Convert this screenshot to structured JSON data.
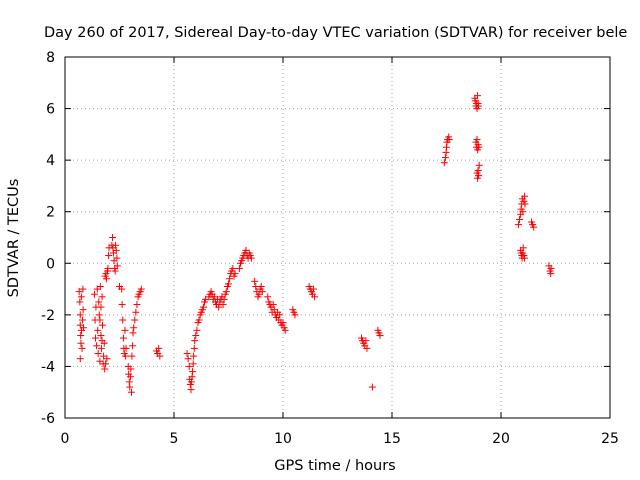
{
  "chart_data": {
    "type": "scatter",
    "title": "Day 260 of 2017, Sidereal Day-to-day VTEC variation (SDTVAR) for receiver bele",
    "xlabel": "GPS time / hours",
    "ylabel": "SDTVAR / TECUs",
    "xlim": [
      0,
      25
    ],
    "ylim": [
      -6,
      8
    ],
    "xticks": [
      0,
      5,
      10,
      15,
      20,
      25
    ],
    "yticks": [
      -6,
      -4,
      -2,
      0,
      2,
      4,
      6,
      8
    ],
    "grid": true,
    "marker": "+",
    "marker_color": "#ff0000",
    "series": [
      {
        "name": "SDTVAR",
        "points": [
          [
            0.65,
            -1.1
          ],
          [
            0.68,
            -1.5
          ],
          [
            0.7,
            -2.0
          ],
          [
            0.7,
            -2.4
          ],
          [
            0.72,
            -2.8
          ],
          [
            0.73,
            -3.1
          ],
          [
            0.75,
            -1.3
          ],
          [
            0.76,
            -2.6
          ],
          [
            0.78,
            -3.3
          ],
          [
            0.8,
            -2.2
          ],
          [
            0.7,
            -3.7
          ],
          [
            0.82,
            -1.0
          ],
          [
            0.83,
            -1.8
          ],
          [
            0.85,
            -2.5
          ],
          [
            1.35,
            -1.2
          ],
          [
            1.38,
            -2.2
          ],
          [
            1.4,
            -2.9
          ],
          [
            1.42,
            -1.7
          ],
          [
            1.45,
            -3.2
          ],
          [
            1.48,
            -1.0
          ],
          [
            1.5,
            -2.6
          ],
          [
            1.52,
            -3.5
          ],
          [
            1.55,
            -1.5
          ],
          [
            1.57,
            -2.0
          ],
          [
            1.6,
            -3.8
          ],
          [
            1.62,
            -0.9
          ],
          [
            1.65,
            -2.8
          ],
          [
            1.67,
            -3.3
          ],
          [
            1.7,
            -1.3
          ],
          [
            1.72,
            -2.4
          ],
          [
            1.75,
            -3.9
          ],
          [
            1.77,
            -3.6
          ],
          [
            1.8,
            -3.1
          ],
          [
            1.82,
            -4.1
          ],
          [
            1.84,
            -0.5
          ],
          [
            1.86,
            -3.9
          ],
          [
            1.88,
            -0.4
          ],
          [
            1.9,
            -0.6
          ],
          [
            1.92,
            -3.7
          ],
          [
            1.95,
            -0.3
          ],
          [
            1.97,
            -0.2
          ],
          [
            2.0,
            0.3
          ],
          [
            2.02,
            0.6
          ],
          [
            1.6,
            -2.2
          ],
          [
            1.65,
            -1.7
          ],
          [
            1.7,
            -3.0
          ],
          [
            2.15,
            0.7
          ],
          [
            2.18,
            1.0
          ],
          [
            2.2,
            0.6
          ],
          [
            2.22,
            0.4
          ],
          [
            2.25,
            0.1
          ],
          [
            2.28,
            -0.2
          ],
          [
            2.3,
            -0.3
          ],
          [
            2.32,
            0.7
          ],
          [
            2.35,
            0.5
          ],
          [
            2.38,
            0.2
          ],
          [
            2.4,
            -0.1
          ],
          [
            2.5,
            -0.9
          ],
          [
            2.6,
            -1.0
          ],
          [
            2.62,
            -1.6
          ],
          [
            2.65,
            -2.2
          ],
          [
            2.68,
            -2.9
          ],
          [
            2.7,
            -3.3
          ],
          [
            2.72,
            -3.5
          ],
          [
            2.75,
            -2.6
          ],
          [
            2.78,
            -3.6
          ],
          [
            2.8,
            -3.3
          ],
          [
            2.9,
            -4.0
          ],
          [
            2.92,
            -4.3
          ],
          [
            2.95,
            -4.6
          ],
          [
            2.97,
            -4.8
          ],
          [
            3.0,
            -4.4
          ],
          [
            3.02,
            -4.1
          ],
          [
            3.05,
            -5.0
          ],
          [
            3.07,
            -3.6
          ],
          [
            3.1,
            -3.2
          ],
          [
            3.12,
            -2.7
          ],
          [
            3.15,
            -2.5
          ],
          [
            3.2,
            -2.2
          ],
          [
            3.25,
            -1.9
          ],
          [
            3.3,
            -1.6
          ],
          [
            3.35,
            -1.3
          ],
          [
            3.4,
            -1.2
          ],
          [
            3.45,
            -1.1
          ],
          [
            3.5,
            -1.0
          ],
          [
            4.2,
            -3.4
          ],
          [
            4.25,
            -3.5
          ],
          [
            4.3,
            -3.3
          ],
          [
            4.35,
            -3.6
          ],
          [
            5.6,
            -3.5
          ],
          [
            5.65,
            -3.7
          ],
          [
            5.7,
            -4.0
          ],
          [
            5.72,
            -4.5
          ],
          [
            5.75,
            -4.7
          ],
          [
            5.78,
            -4.9
          ],
          [
            5.8,
            -4.6
          ],
          [
            5.83,
            -4.4
          ],
          [
            5.85,
            -4.2
          ],
          [
            5.88,
            -3.9
          ],
          [
            5.9,
            -3.6
          ],
          [
            5.93,
            -3.3
          ],
          [
            5.95,
            -3.0
          ],
          [
            6.0,
            -2.8
          ],
          [
            6.05,
            -2.6
          ],
          [
            6.1,
            -2.3
          ],
          [
            6.15,
            -2.2
          ],
          [
            6.2,
            -2.0
          ],
          [
            6.25,
            -1.9
          ],
          [
            6.3,
            -1.8
          ],
          [
            6.35,
            -1.7
          ],
          [
            6.4,
            -1.5
          ],
          [
            6.45,
            -1.4
          ],
          [
            6.6,
            -1.3
          ],
          [
            6.65,
            -1.2
          ],
          [
            6.7,
            -1.1
          ],
          [
            6.75,
            -1.2
          ],
          [
            6.8,
            -1.4
          ],
          [
            6.85,
            -1.3
          ],
          [
            6.9,
            -1.5
          ],
          [
            6.95,
            -1.6
          ],
          [
            7.0,
            -1.4
          ],
          [
            7.05,
            -1.7
          ],
          [
            7.1,
            -1.5
          ],
          [
            7.15,
            -1.4
          ],
          [
            7.2,
            -1.3
          ],
          [
            7.25,
            -1.6
          ],
          [
            7.3,
            -1.4
          ],
          [
            7.35,
            -1.2
          ],
          [
            7.4,
            -1.1
          ],
          [
            7.45,
            -0.9
          ],
          [
            7.5,
            -0.8
          ],
          [
            7.55,
            -0.6
          ],
          [
            7.6,
            -0.4
          ],
          [
            7.65,
            -0.3
          ],
          [
            7.7,
            -0.2
          ],
          [
            7.75,
            -0.5
          ],
          [
            7.8,
            -0.4
          ],
          [
            8.0,
            -0.2
          ],
          [
            8.05,
            0.0
          ],
          [
            8.1,
            0.1
          ],
          [
            8.15,
            0.2
          ],
          [
            8.2,
            0.3
          ],
          [
            8.25,
            0.4
          ],
          [
            8.3,
            0.5
          ],
          [
            8.35,
            0.3
          ],
          [
            8.4,
            0.2
          ],
          [
            8.45,
            0.4
          ],
          [
            8.5,
            0.3
          ],
          [
            8.55,
            0.2
          ],
          [
            8.7,
            -0.7
          ],
          [
            8.75,
            -0.9
          ],
          [
            8.8,
            -1.1
          ],
          [
            8.85,
            -1.3
          ],
          [
            8.9,
            -1.2
          ],
          [
            8.95,
            -1.0
          ],
          [
            9.0,
            -0.9
          ],
          [
            9.05,
            -1.1
          ],
          [
            9.3,
            -1.3
          ],
          [
            9.35,
            -1.5
          ],
          [
            9.4,
            -1.6
          ],
          [
            9.45,
            -1.7
          ],
          [
            9.5,
            -1.9
          ],
          [
            9.55,
            -1.6
          ],
          [
            9.6,
            -1.8
          ],
          [
            9.65,
            -2.0
          ],
          [
            9.7,
            -2.1
          ],
          [
            9.75,
            -1.9
          ],
          [
            9.8,
            -2.2
          ],
          [
            9.85,
            -2.0
          ],
          [
            9.9,
            -2.3
          ],
          [
            9.95,
            -2.4
          ],
          [
            10.0,
            -2.3
          ],
          [
            10.05,
            -2.5
          ],
          [
            10.1,
            -2.6
          ],
          [
            10.45,
            -1.8
          ],
          [
            10.5,
            -1.9
          ],
          [
            10.55,
            -2.0
          ],
          [
            11.2,
            -0.9
          ],
          [
            11.25,
            -1.0
          ],
          [
            11.3,
            -1.1
          ],
          [
            11.35,
            -1.2
          ],
          [
            11.4,
            -1.0
          ],
          [
            11.45,
            -1.3
          ],
          [
            13.6,
            -2.9
          ],
          [
            13.65,
            -3.0
          ],
          [
            13.7,
            -3.1
          ],
          [
            13.75,
            -3.2
          ],
          [
            13.8,
            -3.0
          ],
          [
            13.85,
            -3.3
          ],
          [
            14.1,
            -4.8
          ],
          [
            14.35,
            -2.6
          ],
          [
            14.4,
            -2.7
          ],
          [
            14.45,
            -2.8
          ],
          [
            17.4,
            3.9
          ],
          [
            17.45,
            4.1
          ],
          [
            17.48,
            4.3
          ],
          [
            17.5,
            4.5
          ],
          [
            17.52,
            4.7
          ],
          [
            17.55,
            4.8
          ],
          [
            17.6,
            4.9
          ],
          [
            17.62,
            4.8
          ],
          [
            18.8,
            6.4
          ],
          [
            18.82,
            6.3
          ],
          [
            18.85,
            6.1
          ],
          [
            18.87,
            6.2
          ],
          [
            18.9,
            6.0
          ],
          [
            18.92,
            6.5
          ],
          [
            18.95,
            6.2
          ],
          [
            18.97,
            6.1
          ],
          [
            18.85,
            4.7
          ],
          [
            18.88,
            4.5
          ],
          [
            18.9,
            4.8
          ],
          [
            18.93,
            4.4
          ],
          [
            18.95,
            4.6
          ],
          [
            18.98,
            4.5
          ],
          [
            18.9,
            3.5
          ],
          [
            18.92,
            3.3
          ],
          [
            18.95,
            3.6
          ],
          [
            18.97,
            3.4
          ],
          [
            19.0,
            3.8
          ],
          [
            20.8,
            1.5
          ],
          [
            20.85,
            1.7
          ],
          [
            20.9,
            1.9
          ],
          [
            20.92,
            2.1
          ],
          [
            20.95,
            2.3
          ],
          [
            20.98,
            2.5
          ],
          [
            21.0,
            2.0
          ],
          [
            21.05,
            2.4
          ],
          [
            21.08,
            2.6
          ],
          [
            21.1,
            2.3
          ],
          [
            20.9,
            0.5
          ],
          [
            20.92,
            0.4
          ],
          [
            20.95,
            0.3
          ],
          [
            20.97,
            0.2
          ],
          [
            21.0,
            0.4
          ],
          [
            21.02,
            0.6
          ],
          [
            21.05,
            0.3
          ],
          [
            21.08,
            0.2
          ],
          [
            21.4,
            1.6
          ],
          [
            21.45,
            1.5
          ],
          [
            21.5,
            1.4
          ],
          [
            22.2,
            -0.1
          ],
          [
            22.25,
            -0.3
          ],
          [
            22.28,
            -0.4
          ],
          [
            22.3,
            -0.2
          ]
        ]
      }
    ]
  }
}
